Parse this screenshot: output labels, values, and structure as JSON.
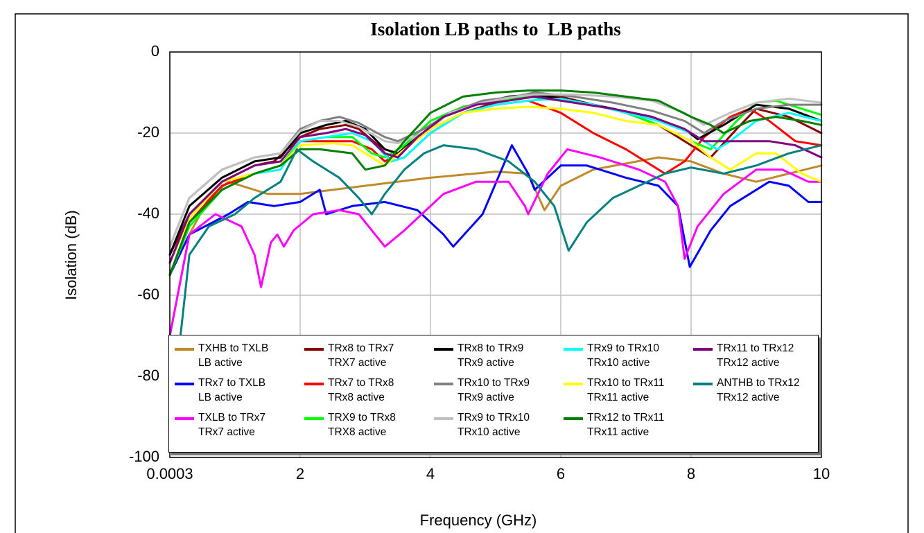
{
  "chart_data": {
    "type": "line",
    "title": "Isolation LB paths to  LB paths",
    "x_label": "Frequency (GHz)",
    "y_label": "Isolation (dB)",
    "xlim": [
      0.0003,
      10
    ],
    "xticks": [
      0.0003,
      2,
      4,
      6,
      8,
      10
    ],
    "ylim": [
      -100,
      0
    ],
    "yticks": [
      0,
      -20,
      -40,
      -60,
      -80,
      -100
    ],
    "grid": true,
    "legend_position": "bottom",
    "series": [
      {
        "name": "TXHB to TXLB\nLB active",
        "color": "#c08a2a",
        "x": [
          0.0003,
          0.3,
          0.6,
          0.9,
          1.5,
          2,
          3,
          4,
          5,
          5.5,
          5.75,
          6,
          6.5,
          7,
          7.5,
          8,
          8.5,
          9,
          9.5,
          10
        ],
        "values": [
          -70,
          -45,
          -36,
          -32,
          -35,
          -35,
          -33,
          -31,
          -29.5,
          -30,
          -39,
          -33,
          -29,
          -27.5,
          -26,
          -27,
          -30,
          -32,
          -30,
          -28
        ]
      },
      {
        "name": "TRx7 to TXLB\nLB active",
        "color": "#0000ff",
        "x": [
          0.0003,
          0.3,
          0.9,
          1.2,
          1.6,
          2,
          2.3,
          2.4,
          2.8,
          3.3,
          3.8,
          4.2,
          4.35,
          4.8,
          5.25,
          5.5,
          5.6,
          6,
          6.4,
          7,
          7.5,
          7.8,
          7.98,
          8.3,
          8.6,
          9.2,
          9.5,
          9.8,
          10
        ],
        "values": [
          -55,
          -45,
          -40,
          -37,
          -38,
          -37,
          -34,
          -40,
          -38,
          -37,
          -39,
          -45,
          -48,
          -40,
          -23,
          -30,
          -34,
          -28,
          -28,
          -31,
          -33,
          -38,
          -53,
          -44,
          -38,
          -32,
          -33,
          -37,
          -37
        ]
      },
      {
        "name": "TXLB to TRx7\nTRx7 active",
        "color": "#ff00ff",
        "x": [
          0.0003,
          0.3,
          0.7,
          1.1,
          1.3,
          1.4,
          1.55,
          1.65,
          1.75,
          1.9,
          2.2,
          2.6,
          2.9,
          3.2,
          3.3,
          3.6,
          4.2,
          4.7,
          5.2,
          5.45,
          5.5,
          5.8,
          6.1,
          6.6,
          7.2,
          7.6,
          7.8,
          7.9,
          8.1,
          8.5,
          9,
          9.4,
          9.8,
          10
        ],
        "values": [
          -70,
          -45,
          -40,
          -43,
          -50,
          -58,
          -47,
          -45,
          -48,
          -44,
          -40,
          -39,
          -40,
          -46,
          -48,
          -44,
          -35,
          -32,
          -32,
          -38,
          -40,
          -30,
          -24,
          -26,
          -29,
          -32,
          -38,
          -51,
          -43,
          -35,
          -29,
          -29,
          -32,
          -32
        ]
      },
      {
        "name": "TRx8 to TRx7\nTRX7 active",
        "color": "#8b0000",
        "x": [
          0.0003,
          0.3,
          0.8,
          1.3,
          1.6,
          2,
          2.3,
          2.7,
          2.9,
          3.2,
          3.4,
          3.6,
          4,
          4.5,
          5,
          5.6,
          6,
          6.5,
          7,
          7.5,
          8,
          8.3,
          8.7,
          9,
          9.5,
          10
        ],
        "values": [
          -50,
          -40,
          -32,
          -28,
          -27,
          -21,
          -19,
          -18,
          -19,
          -23,
          -27,
          -26,
          -20,
          -15,
          -12.5,
          -10.5,
          -11,
          -13,
          -15,
          -18,
          -23,
          -26,
          -19,
          -14,
          -16,
          -20
        ]
      },
      {
        "name": "TRx7 to TRx8\nTRx8 active",
        "color": "#ff0000",
        "x": [
          0.0003,
          0.3,
          0.8,
          1.3,
          1.7,
          2,
          2.4,
          2.8,
          3.1,
          3.3,
          3.6,
          4,
          4.5,
          5,
          5.5,
          6,
          6.5,
          7,
          7.4,
          7.6,
          7.9,
          8.2,
          8.6,
          8.9,
          9.2,
          9.6,
          10
        ],
        "values": [
          -55,
          -42,
          -33,
          -30,
          -28,
          -22,
          -22,
          -22,
          -24,
          -27,
          -24,
          -19,
          -15,
          -13,
          -12,
          -15,
          -20,
          -24,
          -28,
          -30,
          -27,
          -21,
          -16,
          -14,
          -17,
          -22,
          -23
        ]
      },
      {
        "name": "TRX9 to TRx8\nTRX8 active",
        "color": "#00ff00",
        "x": [
          0.0003,
          0.3,
          0.8,
          1.3,
          1.7,
          2,
          2.4,
          2.8,
          3.1,
          3.3,
          3.6,
          4,
          4.5,
          5,
          5.5,
          6,
          6.5,
          7,
          7.5,
          8,
          8.3,
          8.7,
          9,
          9.3,
          9.7,
          10
        ],
        "values": [
          -55,
          -43,
          -34,
          -30,
          -28,
          -22,
          -21,
          -21,
          -25,
          -26,
          -23,
          -17,
          -13.5,
          -12,
          -11,
          -12,
          -13,
          -15,
          -18,
          -22,
          -24,
          -17,
          -12.5,
          -12,
          -14,
          -15.5
        ]
      },
      {
        "name": "TRx8 to TRx9\nTRx9 active",
        "color": "#000000",
        "x": [
          0.0003,
          0.3,
          0.8,
          1.3,
          1.7,
          2,
          2.4,
          2.7,
          3,
          3.3,
          3.5,
          3.8,
          4.2,
          4.7,
          5.2,
          5.6,
          6.2,
          6.8,
          7.4,
          7.9,
          8.1,
          8.5,
          9,
          9.5,
          10
        ],
        "values": [
          -50,
          -38,
          -31,
          -27,
          -26,
          -20,
          -18,
          -17,
          -19,
          -24,
          -25,
          -21,
          -16,
          -13,
          -11,
          -10.5,
          -12,
          -14,
          -16,
          -19,
          -21.5,
          -18,
          -13,
          -14,
          -17
        ]
      },
      {
        "name": "TRx10 to TRx9\nTRx9 active",
        "color": "#808080",
        "x": [
          0.0003,
          0.3,
          0.8,
          1.3,
          1.7,
          2,
          2.3,
          2.6,
          2.9,
          3.3,
          3.5,
          3.9,
          4.3,
          4.8,
          5.3,
          5.6,
          6.2,
          6.8,
          7.4,
          7.9,
          8.2,
          8.5,
          9,
          9.5,
          10
        ],
        "values": [
          -48,
          -36,
          -29,
          -26,
          -25,
          -19,
          -17,
          -16,
          -17.5,
          -21,
          -22,
          -19,
          -15,
          -12,
          -11,
          -10,
          -11,
          -12.5,
          -14.5,
          -17,
          -20,
          -17,
          -14,
          -13,
          -13
        ]
      },
      {
        "name": "TRx9 to TRx10\nTRx10 active",
        "color": "#c0c0c0",
        "x": [
          0.0003,
          0.3,
          0.8,
          1.3,
          1.7,
          2,
          2.3,
          2.6,
          2.9,
          3.3,
          3.5,
          3.9,
          4.3,
          4.8,
          5.3,
          5.6,
          6.2,
          6.8,
          7.4,
          7.9,
          8.2,
          8.6,
          9,
          9.5,
          10
        ],
        "values": [
          -48,
          -36,
          -29,
          -26,
          -25,
          -19.5,
          -17,
          -17,
          -18.5,
          -22,
          -22.5,
          -20,
          -15,
          -12.5,
          -11,
          -10.5,
          -10.5,
          -11,
          -12,
          -15,
          -18,
          -15,
          -12.5,
          -11.5,
          -12.5
        ]
      },
      {
        "name": "TRx9 to TRx10\nTRx10 active",
        "color": "#00ffff",
        "x": [
          0.0003,
          0.3,
          0.8,
          1.3,
          1.7,
          2,
          2.4,
          2.8,
          3.1,
          3.4,
          3.6,
          4,
          4.5,
          5,
          5.5,
          6,
          6.5,
          7,
          7.5,
          8,
          8.4,
          8.6,
          9,
          9.5,
          10
        ],
        "values": [
          -52,
          -40,
          -32,
          -30,
          -29,
          -22,
          -21,
          -20,
          -22,
          -27,
          -26,
          -20,
          -15,
          -13,
          -12,
          -11.5,
          -13,
          -15,
          -17,
          -20,
          -24,
          -22,
          -17,
          -15,
          -17
        ]
      },
      {
        "name": "TRx10 to TRx11\nTRx11 active",
        "color": "#ffff00",
        "x": [
          0.0003,
          0.3,
          0.8,
          1.3,
          1.7,
          2,
          2.5,
          2.8,
          3.1,
          3.3,
          3.6,
          4,
          4.5,
          5,
          5.5,
          6,
          6.5,
          7,
          7.5,
          8,
          8.3,
          8.6,
          9,
          9.3,
          9.7,
          10
        ],
        "values": [
          -52,
          -41,
          -32,
          -30,
          -28,
          -23,
          -22.5,
          -23,
          -26,
          -28,
          -24,
          -19,
          -15,
          -14,
          -13.5,
          -14,
          -15,
          -17,
          -18,
          -22,
          -26,
          -29,
          -25,
          -25,
          -30,
          -32
        ]
      },
      {
        "name": "TRx12 to TRx11\nTRx11 active",
        "color": "#008000",
        "x": [
          0.0003,
          0.3,
          0.8,
          1.3,
          1.7,
          2,
          2.3,
          2.8,
          3,
          3.3,
          3.6,
          4,
          4.5,
          5,
          5.5,
          6,
          6.5,
          7,
          7.5,
          8,
          8.3,
          8.5,
          8.9,
          9.3,
          9.7,
          10
        ],
        "values": [
          -55,
          -42,
          -34,
          -30,
          -28,
          -24,
          -24,
          -25,
          -29,
          -28,
          -22,
          -15,
          -11,
          -10,
          -9.5,
          -9.5,
          -10,
          -11,
          -12,
          -16,
          -18,
          -20,
          -17,
          -16,
          -17,
          -18
        ]
      },
      {
        "name": "TRx11 to TRx12\nTRx12 active",
        "color": "#800080",
        "x": [
          0.0003,
          0.3,
          0.8,
          1.3,
          1.7,
          2,
          2.4,
          2.7,
          3,
          3.3,
          3.5,
          3.8,
          4.2,
          4.7,
          5.2,
          5.6,
          6.2,
          6.8,
          7.4,
          7.9,
          8.2,
          8.7,
          9.2,
          9.6,
          10
        ],
        "values": [
          -52,
          -40,
          -32,
          -28,
          -27,
          -21,
          -20,
          -19,
          -20.5,
          -25,
          -26,
          -21,
          -16,
          -13,
          -12,
          -11,
          -12.5,
          -14,
          -16,
          -19,
          -22,
          -22,
          -22,
          -23,
          -26
        ]
      },
      {
        "name": "ANTHB to TRx12\nTRx12 active",
        "color": "#008080",
        "x": [
          0.0003,
          0.15,
          0.3,
          0.6,
          1,
          1.3,
          1.7,
          1.95,
          2.2,
          2.6,
          2.9,
          3.1,
          3.3,
          3.6,
          3.9,
          4.2,
          4.7,
          5.2,
          5.6,
          5.9,
          6.12,
          6.4,
          6.8,
          7.2,
          7.6,
          8,
          8.5,
          9,
          9.5,
          10
        ],
        "values": [
          -70,
          -72,
          -50,
          -43,
          -40,
          -36,
          -32,
          -24,
          -27,
          -31,
          -36,
          -40,
          -35,
          -29,
          -25,
          -23,
          -24,
          -27,
          -32,
          -38,
          -49,
          -42,
          -36,
          -33,
          -30,
          -28.5,
          -30,
          -28,
          -25,
          -23
        ]
      }
    ]
  }
}
